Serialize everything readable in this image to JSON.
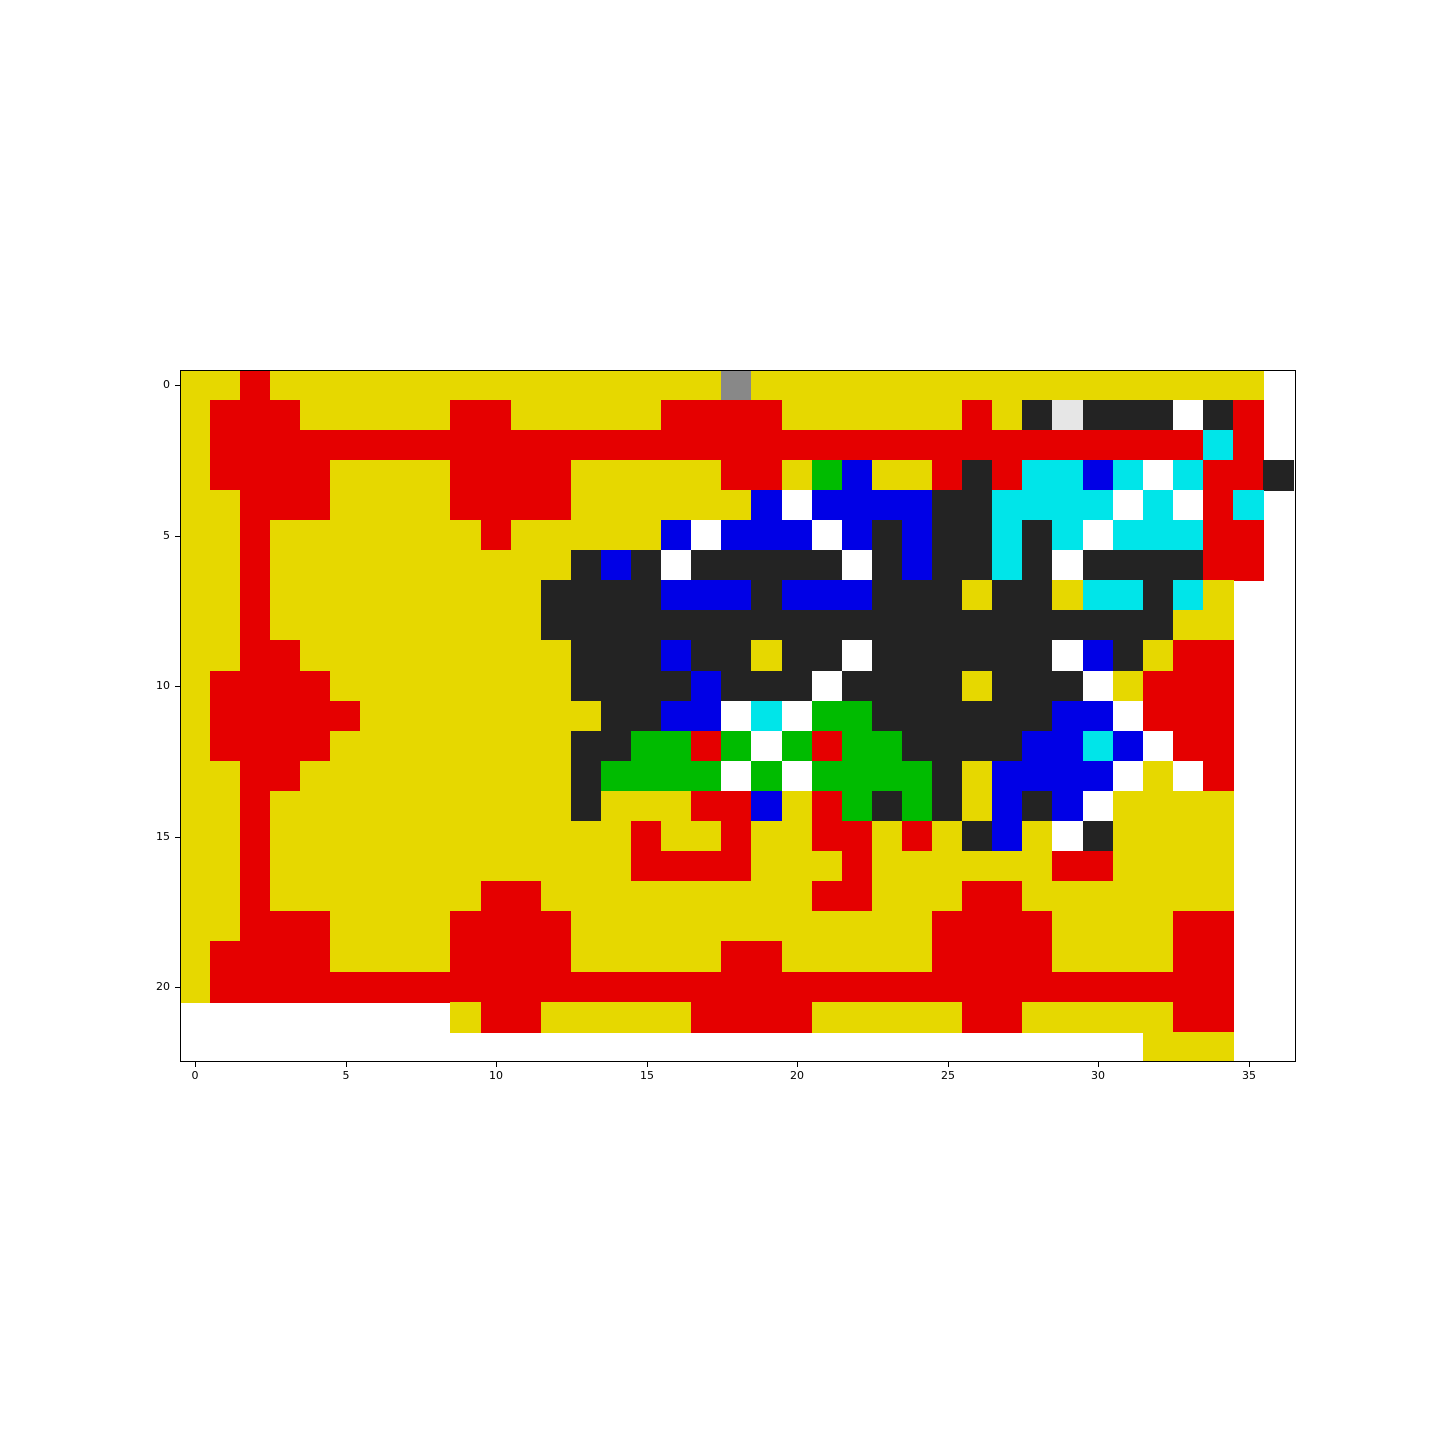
{
  "palette": {
    "Y": "#e6d800",
    "R": "#e50000",
    "K": "#232323",
    "B": "#0000e6",
    "C": "#00e5e9",
    "G": "#00bb00",
    "W": "#ffffff",
    "L": "#e6e6e6",
    "A": "#888888",
    ".": "#ffffff"
  },
  "grid": [
    "YYRYYYYYYYYYYYYYYYAYYYYYYYYYYYYYYYYY",
    "YRRRYYYYYRRYYYYYRRRRYYYYYYRYKLKKKWKR",
    "YRRRRRRRRRRRRRRRRRRRRRRRRRRRRRRRRRCR",
    "YRRRRYYYYRRRRYYYYYRRYGBYYRKRCCBCWCRRK",
    "YYRRRYYYYRRRRYYYYYYBWBBBBKKCCCCWCWRC.",
    "YYRYYYYYYYRYYYYYBWBBBWBKBKKCKCWCCCRR.",
    "YYRYYYYYYYYYYKBKWKKKKKWKBKKCKWKKKKRR.",
    "YYRYYYYYYYYYKKKKBBBKBBBKKKYKKYCCKCY..",
    "YYRYYYYYYYYYKKKKKKKKKKKKKKKKKKKKKYY..",
    "YYRRYYYYYYYYYKKKBKKYKKWKKKKKKWBKYRR..",
    "YRRRRYYYYYYYYKKKKBKKKWKKKKYKKKWYRRR..",
    "YRRRRRYYYYYYYYKKBBWCWGGKKKKKKBBWRRR..",
    "YRRRRYYYYYYYYKKGGRGWGRGGKKKKBBCBWRR..",
    "YYRRYYYYYYYYYKGGGGWGWGGGGKYBBBBWYWR..",
    "YYRYYYYYYYYYYKYYYRRBYRGKGKYBKBWYYYY..",
    "YYRYYYYYYYYYYYYRYYRYYRRYRYKBYWKYYYY..",
    "YYRYYYYYYYYYYYYRRRRYYYRYYYYYYRRYYYY..",
    "YYRYYYYYYYRRYYYYYYYYYRRYYYRRYYYYYYY..",
    "YYRRRYYYYRRRRYYYYYYYYYYYYRRRRYYYYRR..",
    "YRRRRYYYYRRRRYYYYYRRYYYYYRRRRYYYYRR..",
    "YRRRRRRRRRRRRRRRRRRRRRRRRRRRRRRRRRR..",
    ".........YRRYYYYYRRRRYYYYYRRYYYYYRR..",
    "................................YYY.."
  ],
  "x_ticks": [
    "0",
    "5",
    "10",
    "15",
    "20",
    "25",
    "30",
    "35"
  ],
  "y_ticks": [
    "0",
    "5",
    "10",
    "15",
    "20"
  ]
}
